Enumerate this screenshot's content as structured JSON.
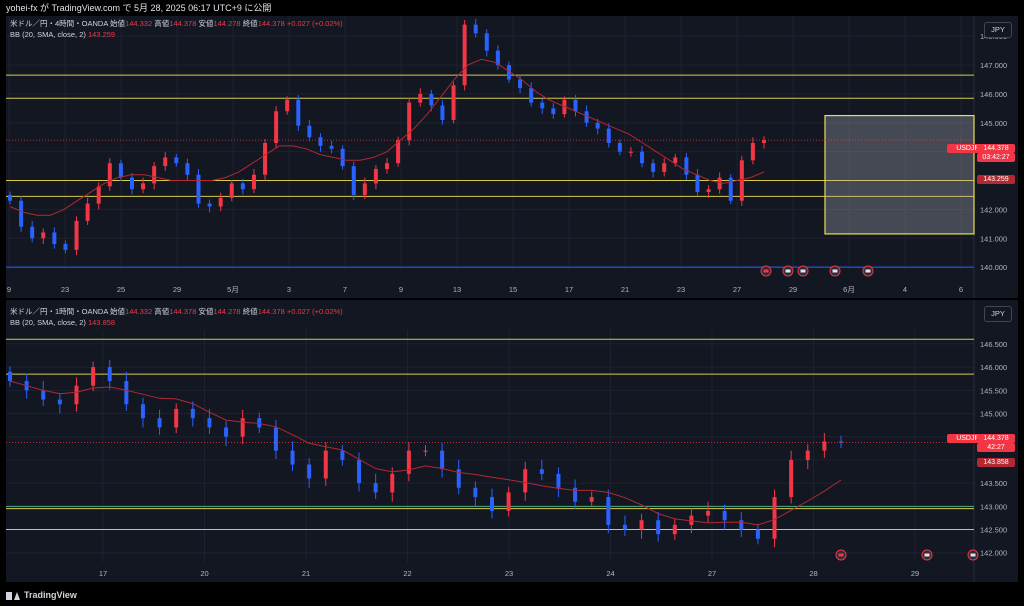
{
  "header": {
    "publish_line": "yohei-fx が TradingView.com で 5月 28, 2025 06:17 UTC+9 に公開"
  },
  "colors": {
    "up": "#f23645",
    "down": "#2962ff",
    "bb": "#b22833",
    "level": "#d8c84a",
    "level_blue": "#2962ff",
    "grid": "#1e2230",
    "bg": "#131722"
  },
  "top_chart": {
    "legend_line1": "米ドル／円・4時間・OANDA",
    "o_label": "始値",
    "o": "144.332",
    "h_label": "高値",
    "h": "144.378",
    "l_label": "安値",
    "l": "144.278",
    "c_label": "終値",
    "c": "144.378",
    "chg": "+0.027 (+0.02%)",
    "bb_label": "BB (20, SMA, close, 2)",
    "bb_value": "143.259",
    "currency": "JPY",
    "symbol_tag": "USDJPY",
    "price_tag": "144.378",
    "countdown_tag": "03:42:27",
    "bb_tag": "143.259",
    "y_ticks": [
      "148.000",
      "147.000",
      "146.000",
      "145.000",
      "144.000",
      "143.000",
      "142.000",
      "141.000",
      "140.000"
    ],
    "x_ticks": [
      "9",
      "23",
      "25",
      "29",
      "5月",
      "3",
      "7",
      "9",
      "13",
      "15",
      "17",
      "21",
      "23",
      "27",
      "29",
      "6月",
      "4",
      "6"
    ]
  },
  "bottom_chart": {
    "legend_line1": "米ドル／円・1時間・OANDA",
    "o_label": "始値",
    "o": "144.332",
    "h_label": "高値",
    "h": "144.378",
    "l_label": "安値",
    "l": "144.278",
    "c_label": "終値",
    "c": "144.378",
    "chg": "+0.027 (+0.02%)",
    "bb_label": "BB (20, SMA, close, 2)",
    "bb_value": "143.858",
    "currency": "JPY",
    "symbol_tag": "USDJPY",
    "price_tag": "144.378",
    "countdown_tag": "42:27",
    "bb_tag": "143.858",
    "y_ticks": [
      "146.500",
      "146.000",
      "145.500",
      "145.000",
      "144.500",
      "144.000",
      "143.500",
      "143.000",
      "142.500",
      "142.000"
    ],
    "x_ticks": [
      "17",
      "20",
      "21",
      "22",
      "23",
      "24",
      "27",
      "28",
      "29"
    ]
  },
  "footer": {
    "brand": "TradingView"
  },
  "chart_data": [
    {
      "type": "candlestick",
      "symbol": "USDJPY",
      "timeframe": "4H",
      "ylim": [
        139.9,
        148.7
      ],
      "levels": [
        146.65,
        145.85,
        143.0,
        142.45,
        140.0
      ],
      "zone": [
        145.25,
        141.15
      ],
      "close": [
        142.3,
        141.4,
        141.0,
        141.2,
        140.8,
        140.6,
        141.6,
        142.2,
        142.8,
        143.6,
        143.1,
        142.7,
        142.9,
        143.5,
        143.8,
        143.6,
        143.2,
        142.2,
        142.1,
        142.4,
        142.9,
        142.7,
        143.2,
        144.3,
        145.4,
        145.8,
        144.9,
        144.5,
        144.2,
        144.1,
        143.5,
        142.5,
        142.9,
        143.4,
        143.6,
        144.4,
        145.7,
        146.0,
        145.6,
        145.1,
        146.3,
        148.4,
        148.1,
        147.5,
        147.0,
        146.5,
        146.2,
        145.7,
        145.5,
        145.3,
        145.8,
        145.4,
        145.0,
        144.8,
        144.3,
        144.0,
        144.0,
        143.6,
        143.3,
        143.6,
        143.8,
        143.2,
        142.6,
        142.7,
        143.1,
        142.3,
        143.7,
        144.3,
        144.4
      ],
      "bb_mid": [
        142.1,
        141.9,
        141.8,
        141.8,
        142.0,
        142.3,
        142.6,
        142.9,
        143.1,
        143.2,
        143.2,
        143.1,
        143.0,
        143.0,
        143.0,
        143.0,
        143.1,
        143.3,
        143.6,
        143.9,
        144.2,
        144.2,
        144.1,
        143.9,
        143.8,
        143.7,
        143.7,
        143.8,
        144.0,
        144.4,
        144.8,
        145.3,
        145.9,
        146.5,
        147.0,
        147.2,
        147.1,
        146.8,
        146.5,
        146.1,
        145.8,
        145.6,
        145.4,
        145.2,
        145.0,
        144.8,
        144.6,
        144.3,
        144.0,
        143.7,
        143.4,
        143.2,
        143.0,
        142.9,
        143.0,
        143.1,
        143.3
      ]
    },
    {
      "type": "candlestick",
      "symbol": "USDJPY",
      "timeframe": "1H",
      "ylim": [
        141.8,
        146.8
      ],
      "levels": [
        146.6,
        145.85,
        142.95,
        142.5
      ],
      "close": [
        145.7,
        145.5,
        145.3,
        145.2,
        145.6,
        146.0,
        145.7,
        145.2,
        144.9,
        144.7,
        145.1,
        144.9,
        144.7,
        144.5,
        144.9,
        144.7,
        144.2,
        143.9,
        143.6,
        144.2,
        144.0,
        143.5,
        143.3,
        143.7,
        144.2,
        144.2,
        143.8,
        143.4,
        143.2,
        142.9,
        143.3,
        143.8,
        143.7,
        143.4,
        143.1,
        143.2,
        142.6,
        142.5,
        142.7,
        142.4,
        142.6,
        142.8,
        142.9,
        142.7,
        142.5,
        142.3,
        143.2,
        144.0,
        144.2,
        144.4,
        144.378
      ]
    }
  ]
}
